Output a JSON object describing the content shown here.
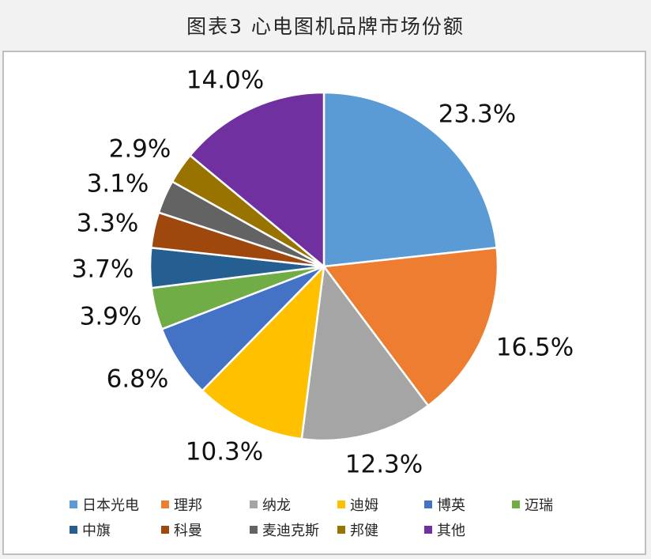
{
  "title": "图表3  心电图机品牌市场份额",
  "chart_data": {
    "type": "pie",
    "title": "",
    "start_angle_deg": 0,
    "direction": "clockwise",
    "legend_position": "bottom",
    "slices": [
      {
        "name": "日本光电",
        "value": 23.3,
        "label": "23.3%",
        "color": "#5b9bd5"
      },
      {
        "name": "理邦",
        "value": 16.5,
        "label": "16.5%",
        "color": "#ed7d31"
      },
      {
        "name": "纳龙",
        "value": 12.3,
        "label": "12.3%",
        "color": "#a5a5a5"
      },
      {
        "name": "迪姆",
        "value": 10.3,
        "label": "10.3%",
        "color": "#ffc000"
      },
      {
        "name": "博英",
        "value": 6.8,
        "label": "6.8%",
        "color": "#4472c4"
      },
      {
        "name": "迈瑞",
        "value": 3.9,
        "label": "3.9%",
        "color": "#70ad47"
      },
      {
        "name": "中旗",
        "value": 3.7,
        "label": "3.7%",
        "color": "#255e91"
      },
      {
        "name": "科曼",
        "value": 3.3,
        "label": "3.3%",
        "color": "#9e480e"
      },
      {
        "name": "麦迪克斯",
        "value": 3.1,
        "label": "3.1%",
        "color": "#636363"
      },
      {
        "name": "邦健",
        "value": 2.9,
        "label": "2.9%",
        "color": "#997300"
      },
      {
        "name": "其他",
        "value": 14.0,
        "label": "14.0%",
        "color": "#7030a0"
      }
    ]
  }
}
